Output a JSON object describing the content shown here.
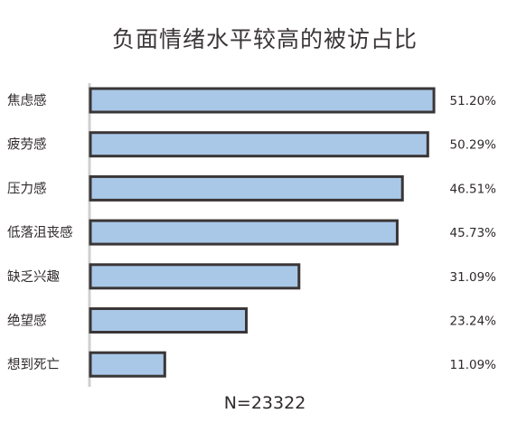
{
  "chart_data": {
    "type": "bar",
    "orientation": "horizontal",
    "title": "负面情绪水平较高的被访占比",
    "categories": [
      "焦虑感",
      "疲劳感",
      "压力感",
      "低落沮丧感",
      "缺乏兴趣",
      "绝望感",
      "想到死亡"
    ],
    "values": [
      51.2,
      50.29,
      46.51,
      45.73,
      31.09,
      23.24,
      11.09
    ],
    "value_labels": [
      "51.20%",
      "50.29%",
      "46.51%",
      "45.73%",
      "31.09%",
      "23.24%",
      "11.09%"
    ],
    "xlim": [
      0,
      52
    ],
    "grid": false,
    "legend": "none",
    "note": "N=23322",
    "colors": {
      "bar_fill": "#a9c8e8",
      "bar_stroke": "#3a3536",
      "axis": "#cfcfcf",
      "text": "#2f2a2c"
    }
  }
}
